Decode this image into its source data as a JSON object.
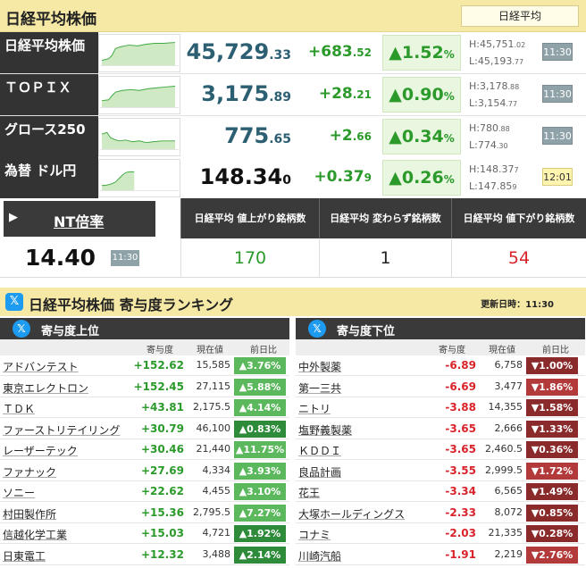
{
  "header": {
    "title": "日経平均株価",
    "button": "日経平均"
  },
  "indices": [
    {
      "name": "日経平均株価",
      "val_main": "45,729",
      "val_dec": ".33",
      "chg_main": "+683",
      "chg_dec": ".52",
      "pct_main": "▲1.52",
      "pct_unit": "%",
      "high": "H:45,751",
      "high_dec": ".02",
      "low": "L:45,193",
      "low_dec": ".77",
      "time": "11:30"
    },
    {
      "name": "ＴＯＰＩＸ",
      "val_main": "3,175",
      "val_dec": ".89",
      "chg_main": "+28",
      "chg_dec": ".21",
      "pct_main": "▲0.90",
      "pct_unit": "%",
      "high": "H:3,178",
      "high_dec": ".88",
      "low": "L:3,154",
      "low_dec": ".77",
      "time": "11:30"
    },
    {
      "name": "グロース250",
      "val_main": "775",
      "val_dec": ".65",
      "chg_main": "+2",
      "chg_dec": ".66",
      "pct_main": "▲0.34",
      "pct_unit": "%",
      "high": "H:780",
      "high_dec": ".88",
      "low": "L:774",
      "low_dec": ".30",
      "time": "11:30"
    },
    {
      "name": "為替 ドル円",
      "val_main": "148.34",
      "val_dec": "0",
      "chg_main": "+0.37",
      "chg_dec": "9",
      "pct_main": "▲0.26",
      "pct_unit": "%",
      "high": "H:148.37",
      "high_dec": "7",
      "low": "L:147.85",
      "low_dec": "9",
      "time": "12:01"
    }
  ],
  "nt": {
    "button": "NT倍率",
    "value": "14.40",
    "time": "11:30"
  },
  "breadth": {
    "headers": [
      "日経平均 値上がり銘柄数",
      "日経平均 変わらず銘柄数",
      "日経平均 値下がり銘柄数"
    ],
    "values": [
      "170",
      "1",
      "54"
    ],
    "colors": [
      "#2b9a2b",
      "#222222",
      "#d9232b"
    ]
  },
  "ranking": {
    "logo": "𝕏",
    "title": "日経平均株価 寄与度ランキング",
    "updated": "更新日時：11:30",
    "columns": {
      "contrib": "寄与度",
      "price": "現在値",
      "change": "前日比"
    },
    "top": {
      "title": "寄与度上位",
      "rows": [
        {
          "name": "アドバンテスト",
          "contrib": "+152.62",
          "price": "15,585",
          "pct": "▲3.76%"
        },
        {
          "name": "東京エレクトロン",
          "contrib": "+152.45",
          "price": "27,115",
          "pct": "▲5.88%"
        },
        {
          "name": "ＴＤＫ",
          "contrib": "+43.81",
          "price": "2,175.5",
          "pct": "▲4.14%"
        },
        {
          "name": "ファーストリテイリング",
          "contrib": "+30.79",
          "price": "46,100",
          "pct": "▲0.83%"
        },
        {
          "name": "レーザーテック",
          "contrib": "+30.46",
          "price": "21,440",
          "pct": "▲11.75%"
        },
        {
          "name": "ファナック",
          "contrib": "+27.69",
          "price": "4,334",
          "pct": "▲3.93%"
        },
        {
          "name": "ソニー",
          "contrib": "+22.62",
          "price": "4,455",
          "pct": "▲3.10%"
        },
        {
          "name": "村田製作所",
          "contrib": "+15.36",
          "price": "2,795.5",
          "pct": "▲7.27%"
        },
        {
          "name": "信越化学工業",
          "contrib": "+15.03",
          "price": "4,721",
          "pct": "▲1.92%"
        },
        {
          "name": "日東電工",
          "contrib": "+12.32",
          "price": "3,488",
          "pct": "▲2.14%"
        }
      ]
    },
    "bottom": {
      "title": "寄与度下位",
      "rows": [
        {
          "name": "中外製薬",
          "contrib": "-6.89",
          "price": "6,758",
          "pct": "▼1.00%"
        },
        {
          "name": "第一三共",
          "contrib": "-6.69",
          "price": "3,477",
          "pct": "▼1.86%"
        },
        {
          "name": "ニトリ",
          "contrib": "-3.88",
          "price": "14,355",
          "pct": "▼1.58%"
        },
        {
          "name": "塩野義製薬",
          "contrib": "-3.65",
          "price": "2,666",
          "pct": "▼1.33%"
        },
        {
          "name": "ＫＤＤＩ",
          "contrib": "-3.65",
          "price": "2,460.5",
          "pct": "▼0.36%"
        },
        {
          "name": "良品計画",
          "contrib": "-3.55",
          "price": "2,999.5",
          "pct": "▼1.72%"
        },
        {
          "name": "花王",
          "contrib": "-3.34",
          "price": "6,565",
          "pct": "▼1.49%"
        },
        {
          "name": "大塚ホールディングス",
          "contrib": "-2.33",
          "price": "8,072",
          "pct": "▼0.85%"
        },
        {
          "name": "コナミ",
          "contrib": "-2.03",
          "price": "21,335",
          "pct": "▼0.28%"
        },
        {
          "name": "川崎汽船",
          "contrib": "-1.91",
          "price": "2,219",
          "pct": "▼2.76%"
        }
      ]
    }
  }
}
